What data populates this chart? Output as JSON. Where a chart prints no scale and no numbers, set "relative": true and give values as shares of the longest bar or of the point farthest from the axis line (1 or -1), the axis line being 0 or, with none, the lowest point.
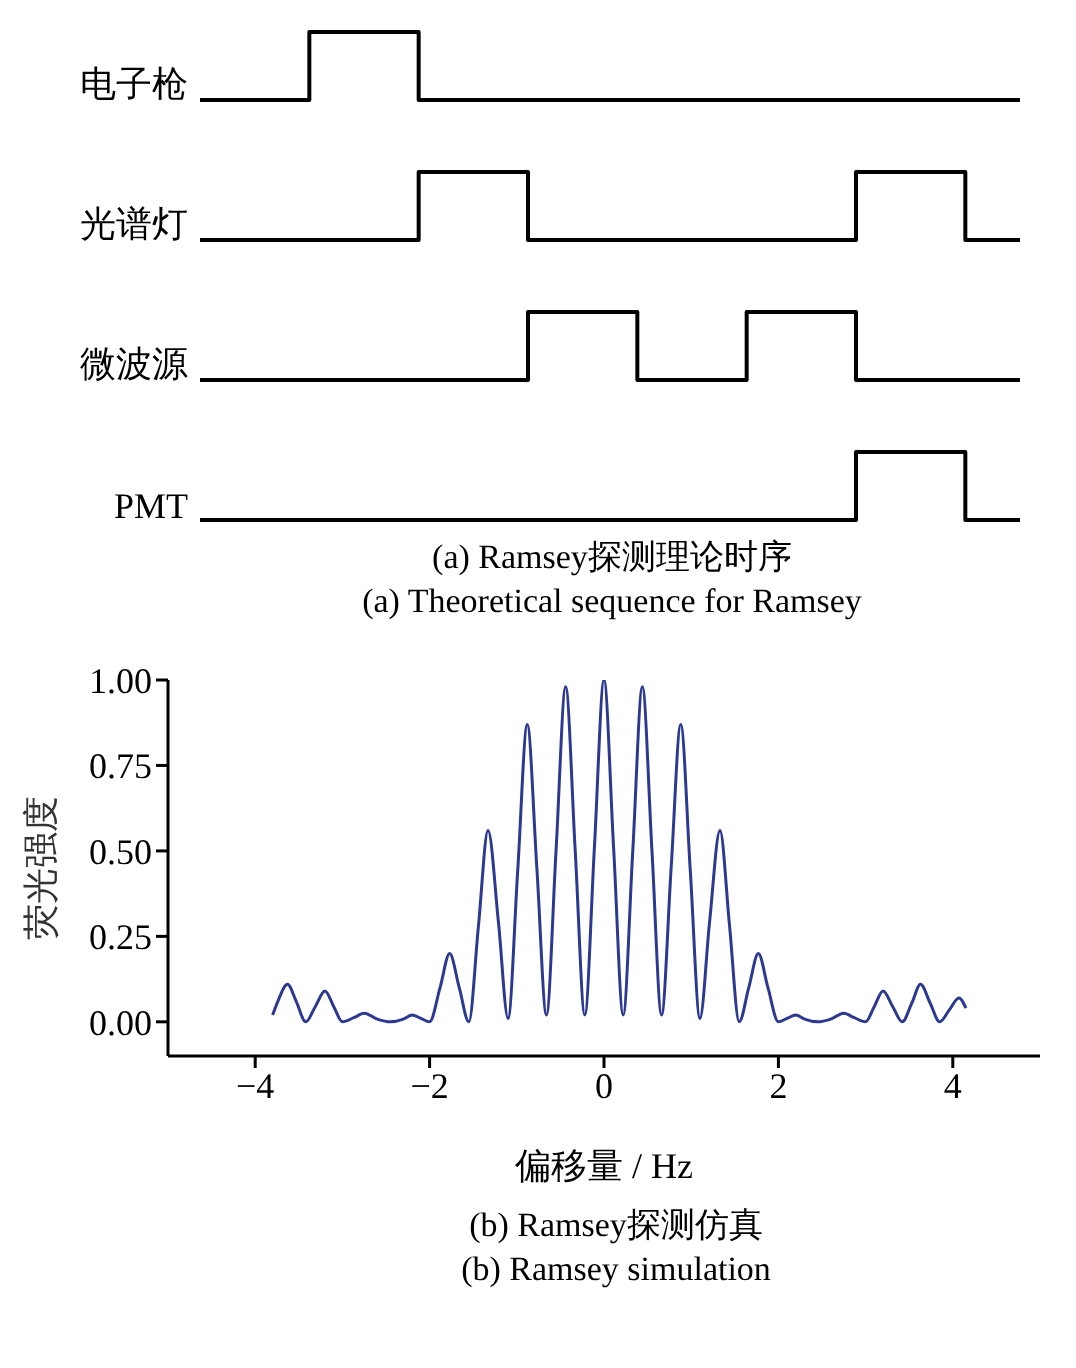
{
  "chart_data": [
    {
      "type": "step",
      "relative": true,
      "marker": "none",
      "categories": [
        null,
        null,
        null,
        null,
        null,
        null,
        null,
        null,
        null,
        null,
        null,
        null,
        null,
        null,
        null,
        null
      ],
      "series": [
        {
          "name": "电子枪",
          "color": "#000000",
          "values": [
            0,
            0,
            1,
            1,
            0,
            0,
            0,
            0,
            0,
            0,
            0,
            0,
            0,
            0,
            0,
            0
          ]
        }
      ]
    },
    {
      "type": "step",
      "relative": true,
      "marker": "none",
      "categories": [
        null,
        null,
        null,
        null,
        null,
        null,
        null,
        null,
        null,
        null,
        null,
        null,
        null,
        null,
        null,
        null
      ],
      "series": [
        {
          "name": "光谱灯",
          "color": "#000000",
          "values": [
            0,
            0,
            0,
            0,
            1,
            1,
            0,
            0,
            0,
            0,
            0,
            0,
            1,
            1,
            0,
            0
          ]
        }
      ]
    },
    {
      "type": "step",
      "relative": true,
      "marker": "none",
      "categories": [
        null,
        null,
        null,
        null,
        null,
        null,
        null,
        null,
        null,
        null,
        null,
        null,
        null,
        null,
        null,
        null
      ],
      "series": [
        {
          "name": "微波源",
          "color": "#000000",
          "values": [
            0,
            0,
            0,
            0,
            0,
            0,
            1,
            1,
            0,
            0,
            1,
            1,
            0,
            0,
            0,
            0
          ]
        }
      ]
    },
    {
      "type": "step",
      "relative": true,
      "marker": "none",
      "categories": [
        null,
        null,
        null,
        null,
        null,
        null,
        null,
        null,
        null,
        null,
        null,
        null,
        null,
        null,
        null,
        null
      ],
      "series": [
        {
          "name": "PMT",
          "color": "#000000",
          "values": [
            0,
            0,
            0,
            0,
            0,
            0,
            0,
            0,
            0,
            0,
            0,
            0,
            1,
            1,
            0,
            0
          ]
        }
      ],
      "annotations": [
        "(a) Ramsey探测理论时序",
        "(a) Theoretical sequence for Ramsey"
      ]
    },
    {
      "type": "line",
      "marker": "none",
      "xlabel": "偏移量 / Hz",
      "ylabel": "荧光强度",
      "xlim": [
        -5,
        5
      ],
      "xticks": [
        {
          "value": -4,
          "label": "−4"
        },
        {
          "value": -2,
          "label": "−2"
        },
        0,
        2,
        4
      ],
      "ylim": [
        -0.1,
        1
      ],
      "yticks": [
        {
          "value": 0,
          "label": "0.00"
        },
        {
          "value": 0.25,
          "label": "0.25"
        },
        {
          "value": 0.5,
          "label": "0.50"
        },
        {
          "value": 0.75,
          "label": "0.75"
        },
        {
          "value": 1,
          "label": "1.00"
        }
      ],
      "x": [
        -3.8,
        -3.74,
        -3.63,
        -3.53,
        -3.42,
        -3.31,
        -3.2,
        -3.1,
        -3.0,
        -2.87,
        -2.75,
        -2.6,
        -2.45,
        -2.3,
        -2.2,
        -2.1,
        -2.0,
        -1.88,
        -1.77,
        -1.66,
        -1.55,
        -1.44,
        -1.33,
        -1.21,
        -1.1,
        -0.99,
        -0.88,
        -0.77,
        -0.66,
        -0.55,
        -0.44,
        -0.33,
        -0.22,
        -0.11,
        0,
        0.11,
        0.22,
        0.33,
        0.44,
        0.55,
        0.66,
        0.77,
        0.88,
        0.99,
        1.1,
        1.21,
        1.33,
        1.44,
        1.55,
        1.66,
        1.77,
        1.88,
        2.0,
        2.1,
        2.2,
        2.3,
        2.45,
        2.6,
        2.75,
        2.87,
        3.0,
        3.1,
        3.2,
        3.31,
        3.42,
        3.53,
        3.63,
        3.74,
        3.85,
        3.96,
        4.07,
        4.15
      ],
      "series": [
        {
          "color": "#2b3990",
          "values": [
            0.02,
            0.06,
            0.11,
            0.06,
            0.0,
            0.045,
            0.09,
            0.045,
            0.0,
            0.012,
            0.025,
            0.008,
            0.0,
            0.008,
            0.02,
            0.01,
            0.0,
            0.1,
            0.2,
            0.1,
            0.0,
            0.28,
            0.56,
            0.29,
            0.01,
            0.44,
            0.87,
            0.45,
            0.02,
            0.5,
            0.98,
            0.5,
            0.02,
            0.51,
            1.0,
            0.51,
            0.02,
            0.5,
            0.98,
            0.5,
            0.02,
            0.45,
            0.87,
            0.44,
            0.01,
            0.29,
            0.56,
            0.28,
            0.0,
            0.1,
            0.2,
            0.1,
            0.0,
            0.01,
            0.02,
            0.008,
            0.0,
            0.008,
            0.025,
            0.012,
            0.0,
            0.045,
            0.09,
            0.045,
            0.0,
            0.055,
            0.11,
            0.055,
            0.0,
            0.035,
            0.07,
            0.04
          ]
        }
      ],
      "annotations": [
        "(b) Ramsey探测仿真",
        "(b) Ramsey simulation"
      ]
    }
  ]
}
